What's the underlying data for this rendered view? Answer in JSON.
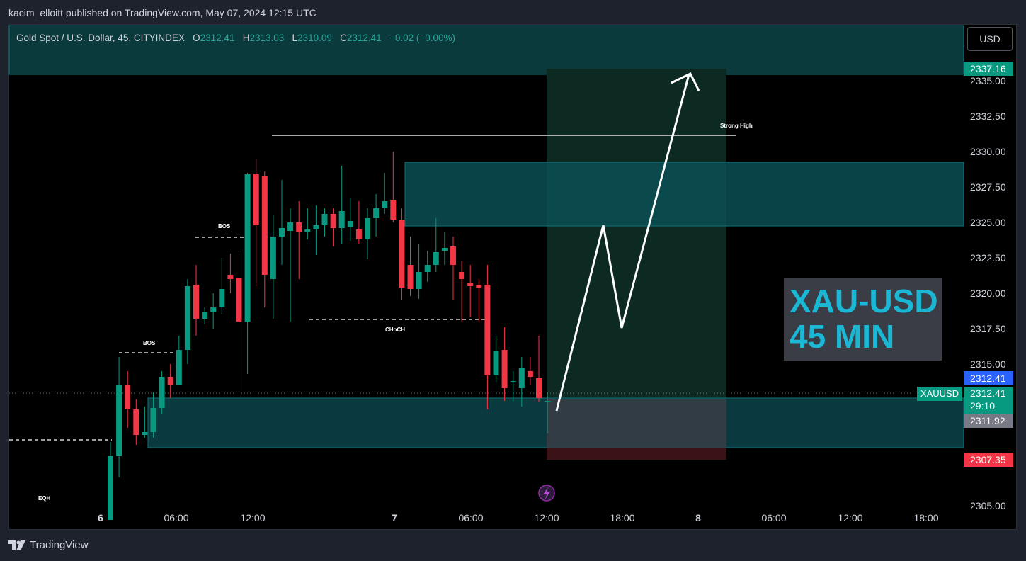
{
  "header": {
    "published_by": "kacim_elloitt published on TradingView.com, May 07, 2024 12:15 UTC"
  },
  "legend": {
    "symbol": "Gold Spot / U.S. Dollar, 45, CITYINDEX",
    "o_label": "O",
    "o_value": "2312.41",
    "h_label": "H",
    "h_value": "2313.03",
    "l_label": "L",
    "l_value": "2310.09",
    "c_label": "C",
    "c_value": "2312.41",
    "change": "−0.02 (−0.00%)"
  },
  "currency_button": "USD",
  "watermark": {
    "line1": "XAU-USD",
    "line2": "45 MIN"
  },
  "price_tags": {
    "target": "2337.16",
    "last_blue": "2312.41",
    "symbol_label": "XAUUSD",
    "current": "2312.41",
    "countdown": "29:10",
    "entry": "2311.92",
    "stop": "2307.35"
  },
  "annotations": {
    "strong_high": "Strong High",
    "bos1": "BOS",
    "bos2": "BOS",
    "choch": "CHoCH",
    "eqh": "EQH"
  },
  "footer": {
    "brand": "TradingView"
  },
  "colors": {
    "up": "#089981",
    "down": "#f23645",
    "zone": "#0b4f54",
    "target_zone": "#0d2a22",
    "stop_zone": "#3b1216",
    "accent_cyan": "#1ab8d4"
  },
  "chart_data": {
    "type": "candlestick",
    "title": "Gold Spot / U.S. Dollar, 45, CITYINDEX",
    "x_tick_labels": [
      "6",
      "06:00",
      "12:00",
      "7",
      "06:00",
      "12:00",
      "18:00",
      "8",
      "06:00",
      "12:00",
      "18:00"
    ],
    "y_tick_labels": [
      "2305.00",
      "2315.00",
      "2317.50",
      "2320.00",
      "2322.50",
      "2325.00",
      "2327.50",
      "2330.00",
      "2332.50",
      "2335.00"
    ],
    "ylim": [
      2303.3,
      2339.0
    ],
    "candles": [
      {
        "o": 2304.0,
        "h": 2309.5,
        "l": 2304.0,
        "c": 2308.5
      },
      {
        "o": 2308.5,
        "h": 2315.5,
        "l": 2307.0,
        "c": 2313.5
      },
      {
        "o": 2313.5,
        "h": 2314.5,
        "l": 2310.5,
        "c": 2311.8
      },
      {
        "o": 2311.8,
        "h": 2312.5,
        "l": 2309.3,
        "c": 2310.0
      },
      {
        "o": 2310.0,
        "h": 2312.0,
        "l": 2309.8,
        "c": 2310.2
      },
      {
        "o": 2310.2,
        "h": 2313.0,
        "l": 2309.8,
        "c": 2311.9
      },
      {
        "o": 2311.9,
        "h": 2314.5,
        "l": 2311.5,
        "c": 2314.1
      },
      {
        "o": 2314.1,
        "h": 2315.0,
        "l": 2312.6,
        "c": 2313.5
      },
      {
        "o": 2313.5,
        "h": 2317.0,
        "l": 2313.5,
        "c": 2316.0
      },
      {
        "o": 2316.0,
        "h": 2321.0,
        "l": 2315.0,
        "c": 2320.5
      },
      {
        "o": 2320.6,
        "h": 2322.0,
        "l": 2317.0,
        "c": 2318.2
      },
      {
        "o": 2318.2,
        "h": 2319.0,
        "l": 2317.8,
        "c": 2318.7
      },
      {
        "o": 2318.7,
        "h": 2320.0,
        "l": 2317.5,
        "c": 2319.0
      },
      {
        "o": 2319.0,
        "h": 2322.5,
        "l": 2318.5,
        "c": 2320.3
      },
      {
        "o": 2321.3,
        "h": 2322.8,
        "l": 2320.0,
        "c": 2321.0
      },
      {
        "o": 2321.1,
        "h": 2323.0,
        "l": 2313.0,
        "c": 2318.0
      },
      {
        "o": 2318.0,
        "h": 2328.5,
        "l": 2314.3,
        "c": 2328.4
      },
      {
        "o": 2328.4,
        "h": 2329.5,
        "l": 2320.5,
        "c": 2324.8
      },
      {
        "o": 2328.3,
        "h": 2328.6,
        "l": 2319.0,
        "c": 2321.3
      },
      {
        "o": 2321.0,
        "h": 2325.5,
        "l": 2318.2,
        "c": 2324.0
      },
      {
        "o": 2324.0,
        "h": 2328.0,
        "l": 2322.0,
        "c": 2324.6
      },
      {
        "o": 2324.4,
        "h": 2326.0,
        "l": 2318.0,
        "c": 2325.0
      },
      {
        "o": 2325.0,
        "h": 2326.5,
        "l": 2321.0,
        "c": 2324.3
      },
      {
        "o": 2324.3,
        "h": 2326.0,
        "l": 2323.8,
        "c": 2324.5
      },
      {
        "o": 2324.5,
        "h": 2326.2,
        "l": 2322.7,
        "c": 2324.8
      },
      {
        "o": 2324.8,
        "h": 2326.0,
        "l": 2324.0,
        "c": 2325.6
      },
      {
        "o": 2325.6,
        "h": 2326.0,
        "l": 2323.3,
        "c": 2324.6
      },
      {
        "o": 2324.6,
        "h": 2329.0,
        "l": 2323.5,
        "c": 2325.8
      },
      {
        "o": 2324.7,
        "h": 2326.7,
        "l": 2323.7,
        "c": 2325.1
      },
      {
        "o": 2324.5,
        "h": 2326.5,
        "l": 2323.5,
        "c": 2323.8
      },
      {
        "o": 2323.8,
        "h": 2326.0,
        "l": 2322.4,
        "c": 2325.3
      },
      {
        "o": 2325.3,
        "h": 2327.0,
        "l": 2324.0,
        "c": 2326.0
      },
      {
        "o": 2326.0,
        "h": 2328.5,
        "l": 2325.6,
        "c": 2326.5
      },
      {
        "o": 2326.6,
        "h": 2330.0,
        "l": 2325.0,
        "c": 2325.2
      },
      {
        "o": 2325.2,
        "h": 2326.0,
        "l": 2319.5,
        "c": 2320.4
      },
      {
        "o": 2322.0,
        "h": 2324.0,
        "l": 2319.8,
        "c": 2320.3
      },
      {
        "o": 2320.3,
        "h": 2323.5,
        "l": 2319.6,
        "c": 2321.5
      },
      {
        "o": 2321.5,
        "h": 2323.0,
        "l": 2320.8,
        "c": 2322.0
      },
      {
        "o": 2322.0,
        "h": 2325.3,
        "l": 2321.5,
        "c": 2322.9
      },
      {
        "o": 2323.0,
        "h": 2324.3,
        "l": 2322.0,
        "c": 2323.2
      },
      {
        "o": 2323.3,
        "h": 2324.0,
        "l": 2319.5,
        "c": 2322.0
      },
      {
        "o": 2321.5,
        "h": 2322.3,
        "l": 2318.0,
        "c": 2321.0
      },
      {
        "o": 2320.7,
        "h": 2322.0,
        "l": 2318.3,
        "c": 2320.5
      },
      {
        "o": 2320.6,
        "h": 2321.0,
        "l": 2318.0,
        "c": 2320.4
      },
      {
        "o": 2320.6,
        "h": 2322.0,
        "l": 2311.8,
        "c": 2314.2
      },
      {
        "o": 2314.2,
        "h": 2317.0,
        "l": 2313.7,
        "c": 2315.9
      },
      {
        "o": 2316.0,
        "h": 2317.6,
        "l": 2312.4,
        "c": 2313.3
      },
      {
        "o": 2313.7,
        "h": 2314.5,
        "l": 2312.4,
        "c": 2313.8
      },
      {
        "o": 2313.3,
        "h": 2315.5,
        "l": 2312.0,
        "c": 2314.7
      },
      {
        "o": 2314.5,
        "h": 2315.5,
        "l": 2313.5,
        "c": 2314.1
      },
      {
        "o": 2314.0,
        "h": 2317.0,
        "l": 2312.3,
        "c": 2312.6
      },
      {
        "o": 2312.4,
        "h": 2313.0,
        "l": 2310.1,
        "c": 2312.4
      }
    ]
  }
}
